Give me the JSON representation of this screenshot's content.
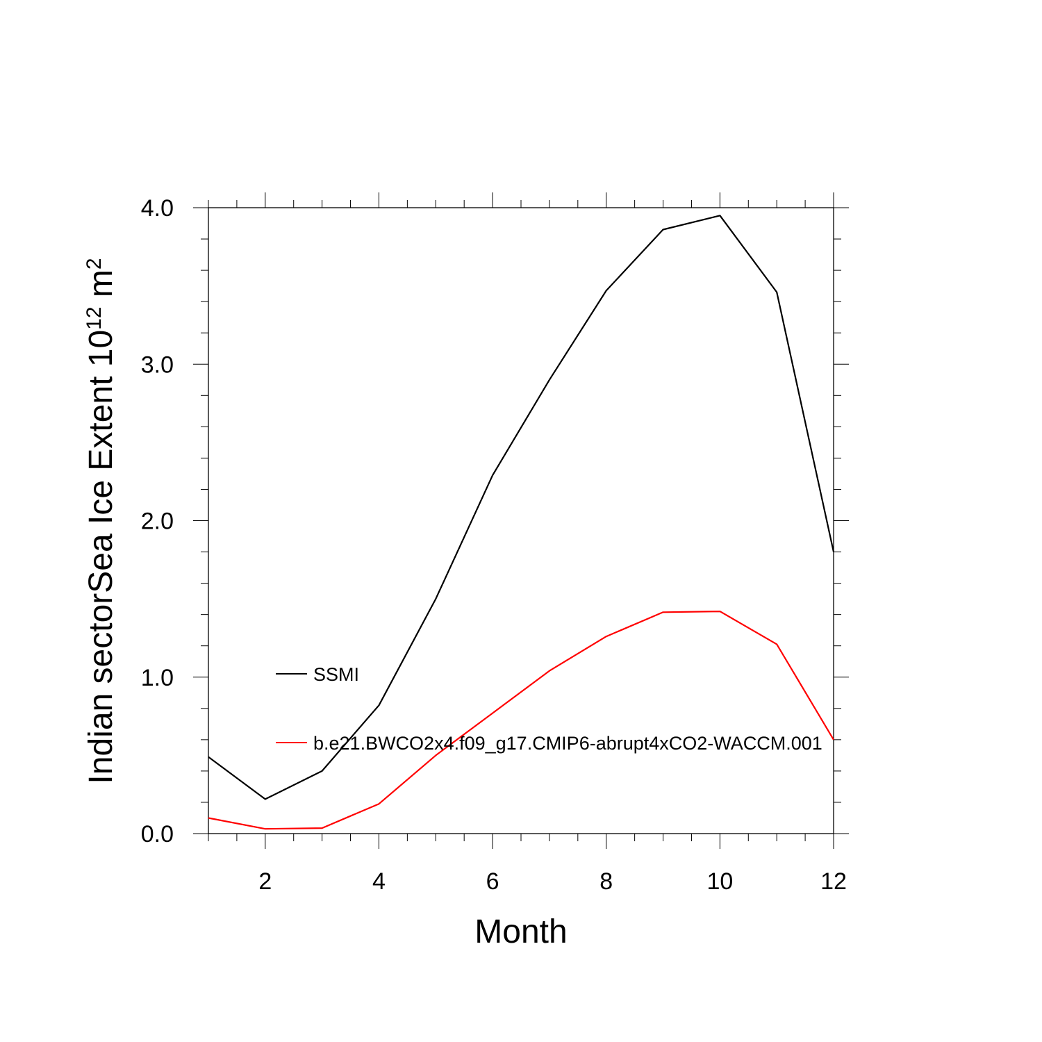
{
  "chart_data": {
    "type": "line",
    "xlabel": "Month",
    "ylabel": {
      "prefix": "Indian sectorSea Ice Extent 10",
      "superscript": "12",
      "unit": " m",
      "unit_superscript": "2"
    },
    "xlim": [
      1,
      12
    ],
    "ylim": [
      0,
      4
    ],
    "x_ticks": [
      2,
      4,
      6,
      8,
      10,
      12
    ],
    "x_tick_labels": [
      "2",
      "4",
      "6",
      "8",
      "10",
      "12"
    ],
    "y_ticks": [
      0,
      1,
      2,
      3,
      4
    ],
    "y_tick_labels": [
      "0.0",
      "1.0",
      "2.0",
      "3.0",
      "4.0"
    ],
    "grid": false,
    "legend_position": "center-left",
    "x": [
      1,
      2,
      3,
      4,
      5,
      6,
      7,
      8,
      9,
      10,
      11,
      12
    ],
    "series": [
      {
        "name": "SSMI",
        "color": "#000000",
        "values": [
          0.49,
          0.22,
          0.4,
          0.82,
          1.5,
          2.29,
          2.9,
          3.47,
          3.86,
          3.95,
          3.46,
          1.8
        ]
      },
      {
        "name": "b.e21.BWCO2x4.f09_g17.CMIP6-abrupt4xCO2-WACCM.001",
        "color": "#ff0000",
        "values": [
          0.1,
          0.03,
          0.035,
          0.19,
          0.5,
          0.77,
          1.04,
          1.26,
          1.415,
          1.42,
          1.21,
          0.6
        ]
      }
    ]
  }
}
